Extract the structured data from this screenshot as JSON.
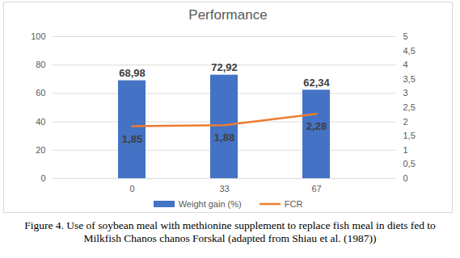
{
  "chart_data": {
    "type": "bar",
    "title": "Performance",
    "caption": "Figure 4. Use of soybean meal with methionine supplement to replace fish meal in diets fed to Milkfish Chanos chanos Forskal (adapted from Shiau et al. (1987))",
    "categories": [
      "0",
      "33",
      "67"
    ],
    "series": [
      {
        "name": "Weight gain (%)",
        "type": "bar",
        "color": "#4472c4",
        "values": [
          68.98,
          72.92,
          62.34
        ],
        "value_labels": [
          "68,98",
          "72,92",
          "62,34"
        ]
      },
      {
        "name": "FCR",
        "type": "line",
        "color": "#ed7d31",
        "axis": "y2",
        "values": [
          1.85,
          1.88,
          2.28
        ],
        "value_labels": [
          "1,85",
          "1,88",
          "2,28"
        ]
      }
    ],
    "ylim": [
      0,
      100
    ],
    "yticks": [
      0,
      20,
      40,
      60,
      80,
      100
    ],
    "y2lim": [
      0,
      5
    ],
    "y2ticks": [
      0,
      {
        "value": 0.5,
        "label": "0,5"
      },
      1,
      {
        "value": 1.5,
        "label": "1,5"
      },
      2,
      {
        "value": 2.5,
        "label": "2,5"
      },
      3,
      {
        "value": 3.5,
        "label": "3,5"
      },
      4,
      {
        "value": 4.5,
        "label": "4,5"
      },
      5
    ],
    "grid": true,
    "data_labels": true,
    "legend": "bottom"
  }
}
